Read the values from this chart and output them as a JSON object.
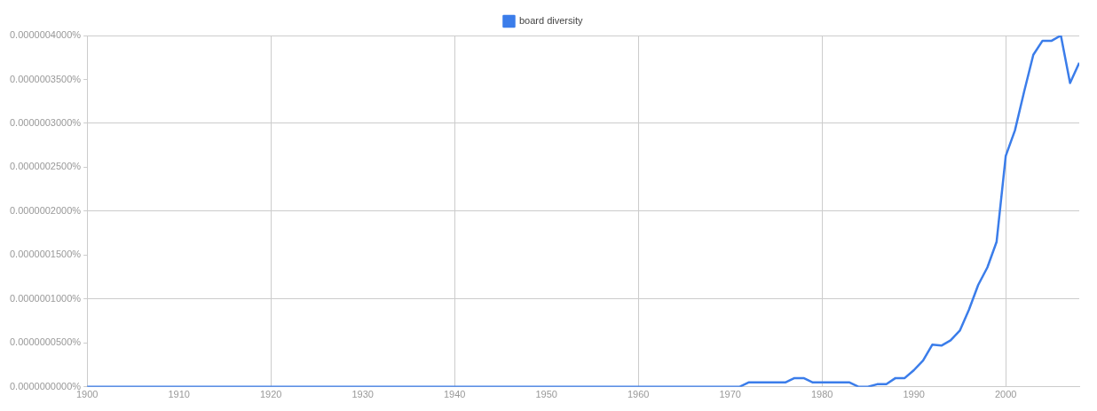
{
  "chart_data": {
    "type": "line",
    "legend": "top",
    "grid": true,
    "marker": "none",
    "line_style": "solid",
    "xlim": [
      1900,
      2008
    ],
    "xticks": [
      1900,
      1910,
      1920,
      1930,
      1940,
      1950,
      1960,
      1970,
      1980,
      1990,
      2000
    ],
    "ylim": [
      0,
      4e-07
    ],
    "yticks": [
      {
        "value": 0,
        "label": "0.0000000000%"
      },
      {
        "value": 5e-08,
        "label": "0.0000000500%"
      },
      {
        "value": 1e-07,
        "label": "0.0000001000%"
      },
      {
        "value": 1.5e-07,
        "label": "0.0000001500%"
      },
      {
        "value": 2e-07,
        "label": "0.0000002000%"
      },
      {
        "value": 2.5e-07,
        "label": "0.0000002500%"
      },
      {
        "value": 3e-07,
        "label": "0.0000003000%"
      },
      {
        "value": 3.5e-07,
        "label": "0.0000003500%"
      },
      {
        "value": 4e-07,
        "label": "0.0000004000%"
      }
    ],
    "series": [
      {
        "name": "board diversity",
        "color": "#3b7dea",
        "x": [
          1900,
          1970,
          1971,
          1972,
          1976,
          1977,
          1978,
          1979,
          1983,
          1984,
          1985,
          1986,
          1987,
          1988,
          1989,
          1990,
          1991,
          1992,
          1993,
          1994,
          1995,
          1996,
          1997,
          1998,
          1999,
          2000,
          2001,
          2002,
          2003,
          2004,
          2005,
          2006,
          2007,
          2008
        ],
        "values": [
          0,
          0,
          0,
          5e-09,
          5e-09,
          1e-08,
          1e-08,
          5e-09,
          5e-09,
          0,
          0,
          3e-09,
          3e-09,
          1e-08,
          1e-08,
          1.9e-08,
          3e-08,
          4.8e-08,
          4.7e-08,
          5.3e-08,
          6.4e-08,
          8.8e-08,
          1.16e-07,
          1.36e-07,
          1.65e-07,
          2.63e-07,
          2.92e-07,
          3.36e-07,
          3.78e-07,
          3.94e-07,
          3.94e-07,
          4e-07,
          3.46e-07,
          3.69e-07
        ]
      }
    ]
  }
}
